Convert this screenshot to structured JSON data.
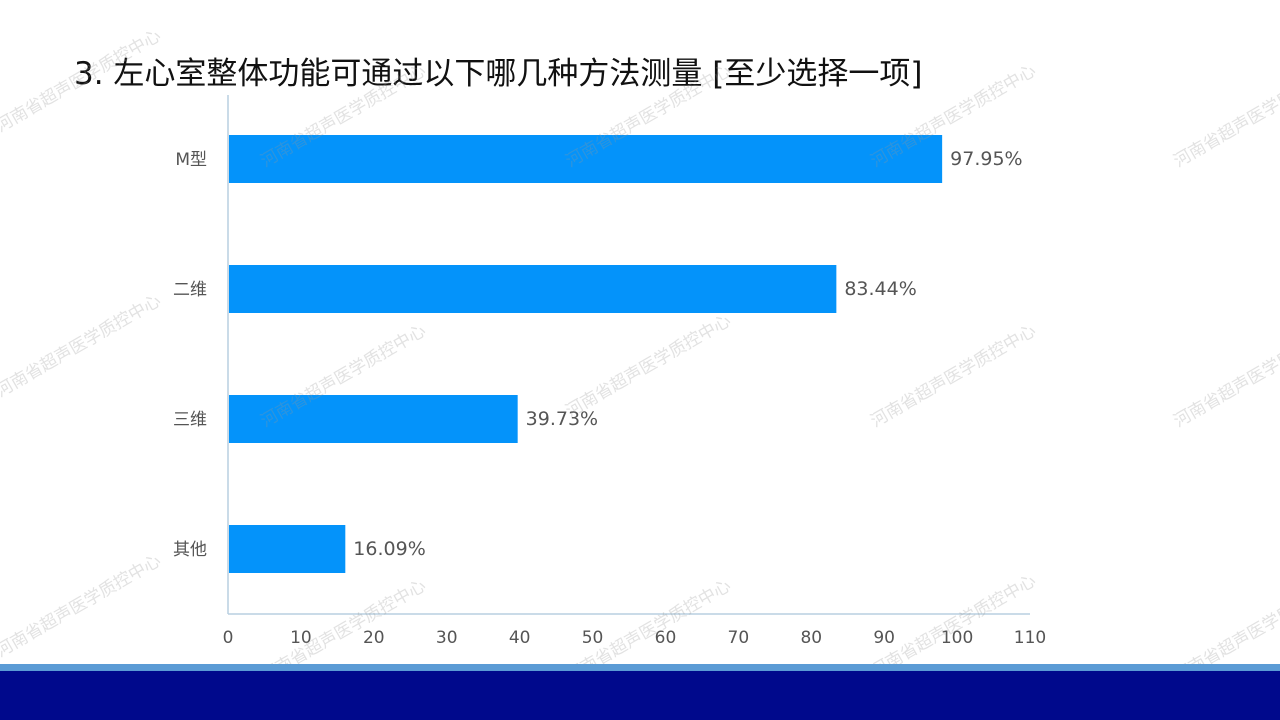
{
  "title": "3. 左心室整体功能可通过以下哪几种方法测量  [至少选择一项]",
  "watermark_text": "河南省超声医学质控中心",
  "colors": {
    "bar": "#0493fa",
    "axis": "#b8cfe0",
    "label": "#555555",
    "bottom_bar": "#00098c",
    "bottom_stripe": "#5b9bd5"
  },
  "chart_data": {
    "type": "bar",
    "orientation": "horizontal",
    "title": "3. 左心室整体功能可通过以下哪几种方法测量  [至少选择一项]",
    "categories": [
      "M型",
      "二维",
      "三维",
      "其他"
    ],
    "values": [
      97.95,
      83.44,
      39.73,
      16.09
    ],
    "value_labels": [
      "97.95%",
      "83.44%",
      "39.73%",
      "16.09%"
    ],
    "xlim": [
      0,
      110
    ],
    "xticks": [
      0,
      10,
      20,
      30,
      40,
      50,
      60,
      70,
      80,
      90,
      100,
      110
    ],
    "xlabel": "",
    "ylabel": "",
    "grid": false,
    "legend": "none"
  }
}
